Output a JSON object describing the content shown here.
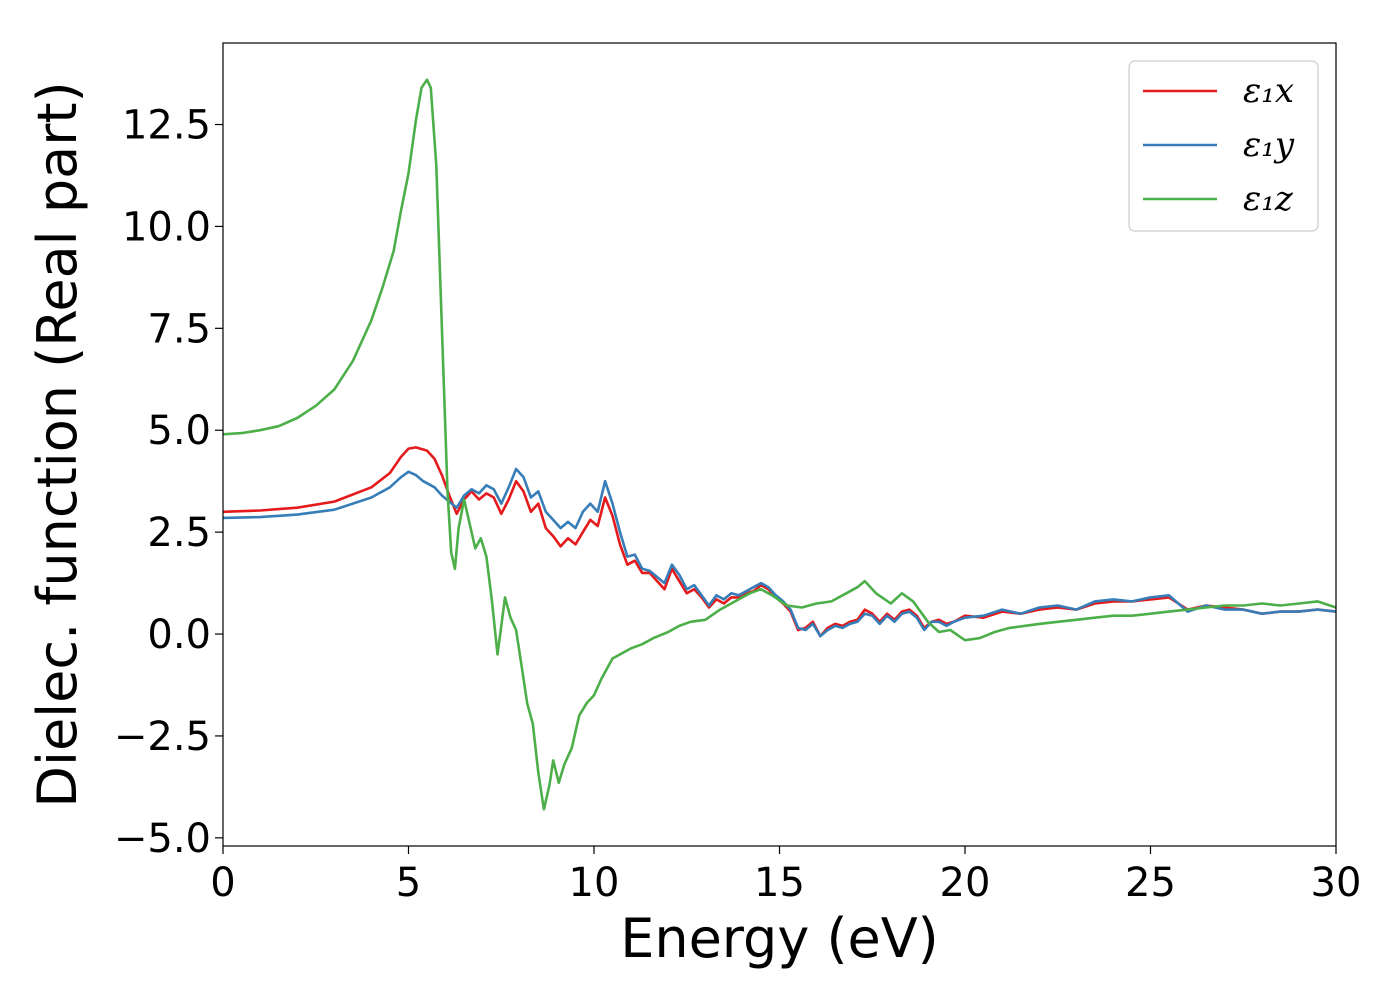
{
  "chart_data": {
    "type": "line",
    "title": "",
    "xlabel": "Energy (eV)",
    "ylabel": "Dielec. function (Real part)",
    "xlim": [
      0,
      30
    ],
    "ylim": [
      -5.2,
      14.5
    ],
    "xticks": [
      0,
      5,
      10,
      15,
      20,
      25,
      30
    ],
    "xtick_labels": [
      "0",
      "5",
      "10",
      "15",
      "20",
      "25",
      "30"
    ],
    "yticks": [
      -5.0,
      -2.5,
      0.0,
      2.5,
      5.0,
      7.5,
      10.0,
      12.5
    ],
    "ytick_labels": [
      "−5.0",
      "−2.5",
      "0.0",
      "2.5",
      "5.0",
      "7.5",
      "10.0",
      "12.5"
    ],
    "grid": false,
    "legend_position": "top-right",
    "series": [
      {
        "name": "ε₁x",
        "color": "#e41a1c",
        "points": [
          [
            0,
            3.0
          ],
          [
            1,
            3.03
          ],
          [
            2,
            3.1
          ],
          [
            3,
            3.25
          ],
          [
            4,
            3.6
          ],
          [
            4.5,
            3.95
          ],
          [
            4.8,
            4.35
          ],
          [
            5.0,
            4.55
          ],
          [
            5.2,
            4.58
          ],
          [
            5.5,
            4.5
          ],
          [
            5.7,
            4.3
          ],
          [
            5.9,
            3.9
          ],
          [
            6.1,
            3.4
          ],
          [
            6.3,
            2.95
          ],
          [
            6.5,
            3.3
          ],
          [
            6.7,
            3.5
          ],
          [
            6.9,
            3.3
          ],
          [
            7.1,
            3.45
          ],
          [
            7.3,
            3.35
          ],
          [
            7.5,
            2.95
          ],
          [
            7.7,
            3.3
          ],
          [
            7.9,
            3.75
          ],
          [
            8.1,
            3.5
          ],
          [
            8.3,
            3.0
          ],
          [
            8.5,
            3.2
          ],
          [
            8.7,
            2.6
          ],
          [
            8.9,
            2.4
          ],
          [
            9.1,
            2.15
          ],
          [
            9.3,
            2.35
          ],
          [
            9.5,
            2.2
          ],
          [
            9.7,
            2.5
          ],
          [
            9.9,
            2.8
          ],
          [
            10.1,
            2.65
          ],
          [
            10.3,
            3.35
          ],
          [
            10.5,
            2.9
          ],
          [
            10.7,
            2.2
          ],
          [
            10.9,
            1.7
          ],
          [
            11.1,
            1.8
          ],
          [
            11.3,
            1.5
          ],
          [
            11.5,
            1.5
          ],
          [
            11.7,
            1.3
          ],
          [
            11.9,
            1.1
          ],
          [
            12.1,
            1.6
          ],
          [
            12.3,
            1.3
          ],
          [
            12.5,
            1.0
          ],
          [
            12.7,
            1.1
          ],
          [
            12.9,
            0.9
          ],
          [
            13.1,
            0.65
          ],
          [
            13.3,
            0.85
          ],
          [
            13.5,
            0.75
          ],
          [
            13.7,
            0.9
          ],
          [
            13.9,
            0.9
          ],
          [
            14.1,
            1.0
          ],
          [
            14.3,
            1.05
          ],
          [
            14.5,
            1.2
          ],
          [
            14.7,
            1.1
          ],
          [
            14.9,
            0.9
          ],
          [
            15.1,
            0.75
          ],
          [
            15.3,
            0.55
          ],
          [
            15.5,
            0.1
          ],
          [
            15.7,
            0.15
          ],
          [
            15.9,
            0.3
          ],
          [
            16.1,
            -0.05
          ],
          [
            16.3,
            0.15
          ],
          [
            16.5,
            0.25
          ],
          [
            16.7,
            0.2
          ],
          [
            16.9,
            0.3
          ],
          [
            17.1,
            0.35
          ],
          [
            17.3,
            0.6
          ],
          [
            17.5,
            0.5
          ],
          [
            17.7,
            0.3
          ],
          [
            17.9,
            0.5
          ],
          [
            18.1,
            0.35
          ],
          [
            18.3,
            0.55
          ],
          [
            18.5,
            0.6
          ],
          [
            18.7,
            0.45
          ],
          [
            18.9,
            0.15
          ],
          [
            19.1,
            0.3
          ],
          [
            19.3,
            0.35
          ],
          [
            19.5,
            0.25
          ],
          [
            19.7,
            0.3
          ],
          [
            20,
            0.45
          ],
          [
            20.5,
            0.4
          ],
          [
            21,
            0.55
          ],
          [
            21.5,
            0.5
          ],
          [
            22,
            0.6
          ],
          [
            22.5,
            0.65
          ],
          [
            23,
            0.6
          ],
          [
            23.5,
            0.75
          ],
          [
            24,
            0.8
          ],
          [
            24.5,
            0.8
          ],
          [
            25,
            0.85
          ],
          [
            25.5,
            0.9
          ],
          [
            26,
            0.6
          ],
          [
            26.5,
            0.7
          ],
          [
            27,
            0.65
          ],
          [
            27.5,
            0.6
          ],
          [
            28,
            0.5
          ],
          [
            28.5,
            0.55
          ],
          [
            29,
            0.55
          ],
          [
            29.5,
            0.6
          ],
          [
            30,
            0.55
          ]
        ]
      },
      {
        "name": "ε₁y",
        "color": "#377eb8",
        "points": [
          [
            0,
            2.85
          ],
          [
            1,
            2.87
          ],
          [
            2,
            2.93
          ],
          [
            3,
            3.05
          ],
          [
            4,
            3.35
          ],
          [
            4.5,
            3.6
          ],
          [
            4.8,
            3.85
          ],
          [
            5.0,
            3.98
          ],
          [
            5.2,
            3.9
          ],
          [
            5.4,
            3.75
          ],
          [
            5.7,
            3.6
          ],
          [
            5.9,
            3.4
          ],
          [
            6.1,
            3.25
          ],
          [
            6.3,
            3.1
          ],
          [
            6.5,
            3.4
          ],
          [
            6.7,
            3.55
          ],
          [
            6.9,
            3.45
          ],
          [
            7.1,
            3.65
          ],
          [
            7.3,
            3.55
          ],
          [
            7.5,
            3.2
          ],
          [
            7.7,
            3.6
          ],
          [
            7.9,
            4.05
          ],
          [
            8.1,
            3.85
          ],
          [
            8.3,
            3.35
          ],
          [
            8.5,
            3.5
          ],
          [
            8.7,
            3.0
          ],
          [
            8.9,
            2.8
          ],
          [
            9.1,
            2.6
          ],
          [
            9.3,
            2.75
          ],
          [
            9.5,
            2.6
          ],
          [
            9.7,
            3.0
          ],
          [
            9.9,
            3.2
          ],
          [
            10.1,
            3.0
          ],
          [
            10.3,
            3.75
          ],
          [
            10.5,
            3.2
          ],
          [
            10.7,
            2.5
          ],
          [
            10.9,
            1.9
          ],
          [
            11.1,
            1.95
          ],
          [
            11.3,
            1.6
          ],
          [
            11.5,
            1.55
          ],
          [
            11.7,
            1.4
          ],
          [
            11.9,
            1.25
          ],
          [
            12.1,
            1.7
          ],
          [
            12.3,
            1.45
          ],
          [
            12.5,
            1.1
          ],
          [
            12.7,
            1.2
          ],
          [
            12.9,
            0.95
          ],
          [
            13.1,
            0.7
          ],
          [
            13.3,
            0.95
          ],
          [
            13.5,
            0.85
          ],
          [
            13.7,
            1.0
          ],
          [
            13.9,
            0.95
          ],
          [
            14.1,
            1.05
          ],
          [
            14.3,
            1.15
          ],
          [
            14.5,
            1.25
          ],
          [
            14.7,
            1.15
          ],
          [
            14.9,
            0.95
          ],
          [
            15.1,
            0.8
          ],
          [
            15.3,
            0.6
          ],
          [
            15.5,
            0.15
          ],
          [
            15.7,
            0.1
          ],
          [
            15.9,
            0.25
          ],
          [
            16.1,
            -0.05
          ],
          [
            16.3,
            0.1
          ],
          [
            16.5,
            0.2
          ],
          [
            16.7,
            0.15
          ],
          [
            16.9,
            0.25
          ],
          [
            17.1,
            0.3
          ],
          [
            17.3,
            0.5
          ],
          [
            17.5,
            0.45
          ],
          [
            17.7,
            0.25
          ],
          [
            17.9,
            0.45
          ],
          [
            18.1,
            0.3
          ],
          [
            18.3,
            0.5
          ],
          [
            18.5,
            0.55
          ],
          [
            18.7,
            0.4
          ],
          [
            18.9,
            0.1
          ],
          [
            19.1,
            0.3
          ],
          [
            19.3,
            0.3
          ],
          [
            19.5,
            0.2
          ],
          [
            19.7,
            0.3
          ],
          [
            20,
            0.4
          ],
          [
            20.5,
            0.45
          ],
          [
            21,
            0.6
          ],
          [
            21.5,
            0.5
          ],
          [
            22,
            0.65
          ],
          [
            22.5,
            0.7
          ],
          [
            23,
            0.6
          ],
          [
            23.5,
            0.8
          ],
          [
            24,
            0.85
          ],
          [
            24.5,
            0.8
          ],
          [
            25,
            0.9
          ],
          [
            25.5,
            0.95
          ],
          [
            26,
            0.55
          ],
          [
            26.5,
            0.7
          ],
          [
            27,
            0.6
          ],
          [
            27.5,
            0.6
          ],
          [
            28,
            0.5
          ],
          [
            28.5,
            0.55
          ],
          [
            29,
            0.55
          ],
          [
            29.5,
            0.6
          ],
          [
            30,
            0.55
          ]
        ]
      },
      {
        "name": "ε₁z",
        "color": "#4daf4a",
        "points": [
          [
            0,
            4.9
          ],
          [
            0.5,
            4.93
          ],
          [
            1,
            5.0
          ],
          [
            1.5,
            5.1
          ],
          [
            2,
            5.3
          ],
          [
            2.5,
            5.6
          ],
          [
            3,
            6.0
          ],
          [
            3.5,
            6.7
          ],
          [
            4,
            7.7
          ],
          [
            4.3,
            8.5
          ],
          [
            4.6,
            9.4
          ],
          [
            4.8,
            10.4
          ],
          [
            5.0,
            11.3
          ],
          [
            5.2,
            12.6
          ],
          [
            5.35,
            13.4
          ],
          [
            5.5,
            13.6
          ],
          [
            5.6,
            13.4
          ],
          [
            5.75,
            11.5
          ],
          [
            5.9,
            7.5
          ],
          [
            6.05,
            3.5
          ],
          [
            6.15,
            2.0
          ],
          [
            6.25,
            1.6
          ],
          [
            6.35,
            2.6
          ],
          [
            6.5,
            3.3
          ],
          [
            6.65,
            2.7
          ],
          [
            6.8,
            2.1
          ],
          [
            6.95,
            2.35
          ],
          [
            7.1,
            1.9
          ],
          [
            7.25,
            0.8
          ],
          [
            7.4,
            -0.5
          ],
          [
            7.5,
            0.2
          ],
          [
            7.6,
            0.9
          ],
          [
            7.75,
            0.4
          ],
          [
            7.9,
            0.1
          ],
          [
            8.05,
            -0.8
          ],
          [
            8.2,
            -1.7
          ],
          [
            8.35,
            -2.2
          ],
          [
            8.5,
            -3.4
          ],
          [
            8.65,
            -4.3
          ],
          [
            8.8,
            -3.7
          ],
          [
            8.9,
            -3.1
          ],
          [
            9.05,
            -3.65
          ],
          [
            9.2,
            -3.2
          ],
          [
            9.4,
            -2.8
          ],
          [
            9.6,
            -2.0
          ],
          [
            9.8,
            -1.7
          ],
          [
            10.0,
            -1.5
          ],
          [
            10.2,
            -1.1
          ],
          [
            10.5,
            -0.6
          ],
          [
            10.8,
            -0.45
          ],
          [
            11,
            -0.35
          ],
          [
            11.3,
            -0.25
          ],
          [
            11.6,
            -0.1
          ],
          [
            12,
            0.05
          ],
          [
            12.3,
            0.2
          ],
          [
            12.6,
            0.3
          ],
          [
            13,
            0.35
          ],
          [
            13.4,
            0.6
          ],
          [
            13.8,
            0.8
          ],
          [
            14.2,
            1.0
          ],
          [
            14.5,
            1.1
          ],
          [
            14.8,
            0.95
          ],
          [
            15.2,
            0.7
          ],
          [
            15.6,
            0.65
          ],
          [
            16,
            0.75
          ],
          [
            16.4,
            0.8
          ],
          [
            16.8,
            1.0
          ],
          [
            17.1,
            1.15
          ],
          [
            17.3,
            1.3
          ],
          [
            17.6,
            1.0
          ],
          [
            18,
            0.75
          ],
          [
            18.3,
            1.0
          ],
          [
            18.6,
            0.8
          ],
          [
            19,
            0.3
          ],
          [
            19.3,
            0.05
          ],
          [
            19.6,
            0.1
          ],
          [
            20,
            -0.15
          ],
          [
            20.4,
            -0.1
          ],
          [
            20.8,
            0.05
          ],
          [
            21.2,
            0.15
          ],
          [
            21.6,
            0.2
          ],
          [
            22,
            0.25
          ],
          [
            22.5,
            0.3
          ],
          [
            23,
            0.35
          ],
          [
            23.5,
            0.4
          ],
          [
            24,
            0.45
          ],
          [
            24.5,
            0.45
          ],
          [
            25,
            0.5
          ],
          [
            25.5,
            0.55
          ],
          [
            26,
            0.6
          ],
          [
            26.5,
            0.65
          ],
          [
            27,
            0.7
          ],
          [
            27.5,
            0.7
          ],
          [
            28,
            0.75
          ],
          [
            28.5,
            0.7
          ],
          [
            29,
            0.75
          ],
          [
            29.5,
            0.8
          ],
          [
            30,
            0.65
          ]
        ]
      }
    ]
  }
}
